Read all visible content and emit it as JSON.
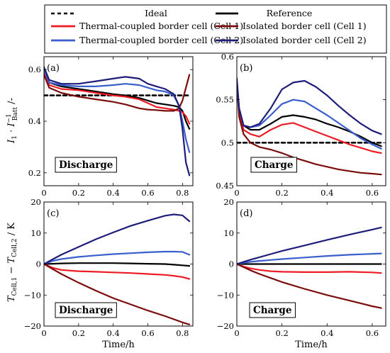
{
  "legend": [
    {
      "label": "Ideal",
      "color": "#000000",
      "dash": true
    },
    {
      "label": "Reference",
      "color": "#000000",
      "dash": false
    },
    {
      "label": "Thermal-coupled border cell (Cell 1)",
      "color": "#ed1c24",
      "dash": false
    },
    {
      "label": "Isolated border cell (Cell 1)",
      "color": "#7b0c0c",
      "dash": false
    },
    {
      "label": "Thermal-coupled border cell (Cell 2)",
      "color": "#3a5fcd",
      "dash": false
    },
    {
      "label": "Isolated border cell (Cell 2)",
      "color": "#1e1e7a",
      "dash": false
    }
  ],
  "ylabel_top": "I₁ · I⁻¹Batt / -",
  "ylabel_bottom": "TCell,1 − TCell,2 / K",
  "chart_data": [
    {
      "panel": "(a)",
      "type": "line",
      "box_label": "Discharge",
      "xlabel": "",
      "xlim": [
        0,
        0.86
      ],
      "ylim": [
        0.15,
        0.65
      ],
      "xticks": [
        "0",
        "0.2",
        "0.4",
        "0.6",
        "0.8"
      ],
      "yticks": [
        "0.2",
        "0.4",
        "0.6"
      ],
      "x": [
        0,
        0.03,
        0.1,
        0.2,
        0.3,
        0.4,
        0.47,
        0.55,
        0.6,
        0.65,
        0.7,
        0.75,
        0.78,
        0.8,
        0.82,
        0.84
      ],
      "series": [
        {
          "name": "Ideal",
          "values": [
            0.5,
            0.5,
            0.5,
            0.5,
            0.5,
            0.5,
            0.5,
            0.5,
            0.5,
            0.5,
            0.5,
            0.5,
            0.5,
            0.5,
            0.5,
            0.5
          ]
        },
        {
          "name": "Reference",
          "values": [
            0.6,
            0.55,
            0.535,
            0.525,
            0.515,
            0.505,
            0.5,
            0.49,
            0.48,
            0.47,
            0.465,
            0.46,
            0.455,
            0.44,
            0.4,
            0.37
          ]
        },
        {
          "name": "Thermal-coupled border cell (Cell 1)",
          "values": [
            0.59,
            0.54,
            0.525,
            0.52,
            0.51,
            0.5,
            0.495,
            0.485,
            0.47,
            0.455,
            0.45,
            0.445,
            0.44,
            0.435,
            0.42,
            0.39
          ]
        },
        {
          "name": "Isolated border cell (Cell 1)",
          "values": [
            0.58,
            0.53,
            0.51,
            0.495,
            0.485,
            0.475,
            0.465,
            0.45,
            0.445,
            0.443,
            0.44,
            0.44,
            0.45,
            0.48,
            0.53,
            0.58
          ]
        },
        {
          "name": "Thermal-coupled border cell (Cell 2)",
          "values": [
            0.6,
            0.55,
            0.54,
            0.535,
            0.535,
            0.54,
            0.545,
            0.54,
            0.53,
            0.52,
            0.515,
            0.5,
            0.46,
            0.4,
            0.33,
            0.28
          ]
        },
        {
          "name": "Isolated border cell (Cell 2)",
          "values": [
            0.61,
            0.56,
            0.545,
            0.545,
            0.555,
            0.565,
            0.572,
            0.565,
            0.545,
            0.535,
            0.525,
            0.505,
            0.46,
            0.37,
            0.24,
            0.19
          ]
        }
      ]
    },
    {
      "panel": "(b)",
      "type": "line",
      "box_label": "Charge",
      "xlabel": "",
      "xlim": [
        0,
        0.66
      ],
      "ylim": [
        0.45,
        0.6
      ],
      "xticks": [
        "0",
        "0.2",
        "0.4",
        "0.6"
      ],
      "yticks": [
        "0.45",
        "0.5",
        "0.55",
        "0.6"
      ],
      "x": [
        0,
        0.01,
        0.03,
        0.06,
        0.1,
        0.15,
        0.2,
        0.25,
        0.3,
        0.35,
        0.4,
        0.45,
        0.5,
        0.55,
        0.6,
        0.64
      ],
      "series": [
        {
          "name": "Ideal",
          "values": [
            0.5,
            0.5,
            0.5,
            0.5,
            0.5,
            0.5,
            0.5,
            0.5,
            0.5,
            0.5,
            0.5,
            0.5,
            0.5,
            0.5,
            0.5,
            0.5
          ]
        },
        {
          "name": "Reference",
          "values": [
            0.57,
            0.54,
            0.52,
            0.515,
            0.515,
            0.522,
            0.53,
            0.532,
            0.53,
            0.527,
            0.522,
            0.518,
            0.513,
            0.507,
            0.5,
            0.496
          ]
        },
        {
          "name": "Thermal-coupled border cell (Cell 1)",
          "values": [
            0.57,
            0.535,
            0.515,
            0.51,
            0.507,
            0.515,
            0.521,
            0.523,
            0.518,
            0.513,
            0.508,
            0.503,
            0.498,
            0.494,
            0.49,
            0.488
          ]
        },
        {
          "name": "Isolated border cell (Cell 1)",
          "values": [
            0.57,
            0.53,
            0.51,
            0.5,
            0.495,
            0.492,
            0.488,
            0.483,
            0.479,
            0.475,
            0.472,
            0.469,
            0.467,
            0.465,
            0.464,
            0.463
          ]
        },
        {
          "name": "Thermal-coupled border cell (Cell 2)",
          "values": [
            0.57,
            0.54,
            0.52,
            0.518,
            0.52,
            0.532,
            0.545,
            0.55,
            0.548,
            0.54,
            0.532,
            0.523,
            0.514,
            0.505,
            0.498,
            0.493
          ]
        },
        {
          "name": "Isolated border cell (Cell 2)",
          "values": [
            0.575,
            0.54,
            0.52,
            0.518,
            0.522,
            0.54,
            0.562,
            0.57,
            0.572,
            0.565,
            0.555,
            0.543,
            0.532,
            0.522,
            0.514,
            0.51
          ]
        }
      ]
    },
    {
      "panel": "(c)",
      "type": "line",
      "box_label": "Discharge",
      "xlabel": "Time/h",
      "xlim": [
        0,
        0.86
      ],
      "ylim": [
        -20,
        20
      ],
      "xticks": [
        "0",
        "0.2",
        "0.4",
        "0.6",
        "0.8"
      ],
      "yticks": [
        "−20",
        "−10",
        "0",
        "10",
        "20"
      ],
      "x": [
        0,
        0.05,
        0.1,
        0.2,
        0.3,
        0.4,
        0.5,
        0.6,
        0.7,
        0.75,
        0.8,
        0.84
      ],
      "series": [
        {
          "name": "Reference",
          "values": [
            0,
            0.1,
            0.2,
            0.3,
            0.3,
            0.3,
            0.2,
            0.1,
            0,
            -0.2,
            -0.4,
            -0.6
          ]
        },
        {
          "name": "Thermal-coupled border cell (Cell 1)",
          "values": [
            0,
            -1.2,
            -1.9,
            -2.3,
            -2.5,
            -2.7,
            -2.9,
            -3.2,
            -3.5,
            -3.8,
            -4.2,
            -4.8
          ]
        },
        {
          "name": "Isolated border cell (Cell 1)",
          "values": [
            0,
            -1.6,
            -3.2,
            -6.0,
            -8.6,
            -11.0,
            -13.0,
            -15.0,
            -16.8,
            -17.8,
            -18.8,
            -19.5
          ]
        },
        {
          "name": "Thermal-coupled border cell (Cell 2)",
          "values": [
            0,
            1.0,
            1.6,
            2.3,
            2.8,
            3.2,
            3.5,
            3.8,
            4.0,
            4.0,
            3.9,
            3.0
          ]
        },
        {
          "name": "Isolated border cell (Cell 2)",
          "values": [
            0,
            1.5,
            3.0,
            5.5,
            8.0,
            10.2,
            12.3,
            14.0,
            15.6,
            16.0,
            15.7,
            13.8
          ]
        }
      ]
    },
    {
      "panel": "(d)",
      "type": "line",
      "box_label": "Charge",
      "xlabel": "Time/h",
      "xlim": [
        0,
        0.66
      ],
      "ylim": [
        -20,
        20
      ],
      "xticks": [
        "0",
        "0.2",
        "0.4",
        "0.6"
      ],
      "yticks": [
        "−20",
        "−10",
        "0",
        "10",
        "20"
      ],
      "x": [
        0,
        0.03,
        0.06,
        0.1,
        0.15,
        0.2,
        0.3,
        0.4,
        0.5,
        0.6,
        0.64
      ],
      "series": [
        {
          "name": "Reference",
          "values": [
            0,
            0,
            0,
            0,
            0,
            0,
            0,
            0,
            0,
            0,
            0
          ]
        },
        {
          "name": "Thermal-coupled border cell (Cell 1)",
          "values": [
            0,
            -0.8,
            -1.4,
            -1.9,
            -2.3,
            -2.5,
            -2.6,
            -2.6,
            -2.5,
            -2.7,
            -2.9
          ]
        },
        {
          "name": "Isolated border cell (Cell 1)",
          "values": [
            0,
            -1.0,
            -2.0,
            -3.2,
            -4.5,
            -5.8,
            -8.0,
            -10.0,
            -11.8,
            -13.6,
            -14.2
          ]
        },
        {
          "name": "Thermal-coupled border cell (Cell 2)",
          "values": [
            0,
            0.4,
            0.7,
            1.0,
            1.3,
            1.6,
            2.1,
            2.6,
            3.0,
            3.3,
            3.4
          ]
        },
        {
          "name": "Isolated border cell (Cell 2)",
          "values": [
            0,
            0.7,
            1.4,
            2.2,
            3.2,
            4.2,
            6.0,
            7.8,
            9.5,
            11.1,
            11.8
          ]
        }
      ]
    }
  ]
}
